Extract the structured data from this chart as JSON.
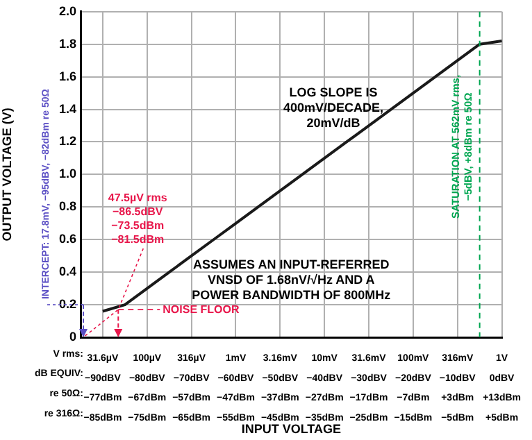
{
  "chart_data": {
    "type": "line",
    "xlabel": "INPUT VOLTAGE",
    "ylabel": "OUTPUT VOLTAGE (V)",
    "categories": [
      null,
      "31.6µV\n−90dBV\n−77dBm\n−85dBm",
      null,
      "100µV\n−80dBV\n−67dBm\n−75dBm",
      null,
      "316µV\n−70dBV\n−57dBm\n−65dBm",
      null,
      "1mV\n−60dBV\n−47dBm\n−55dBm",
      null,
      "3.16mV\n−50dBV\n−37dBm\n−45dBm",
      null,
      "10mV\n−40dBV\n−27dBm\n−35dBm",
      null,
      "31.6mV\n−30dBV\n−17dBm\n−25dBm",
      null,
      "100mV\n−20dBV\n−7dBm\n−15dBm",
      null,
      "316mV\n−10dBV\n+3dBm\n−5dBm",
      null,
      "1V\n0dBV\n+13dBm\n+5dBm"
    ],
    "series": [
      {
        "color": "#1a1a1a",
        "values": [
          null,
          0.16,
          0.2,
          0.3,
          0.4,
          0.5,
          0.6,
          0.7,
          0.8,
          0.9,
          1.0,
          1.1,
          1.2,
          1.3,
          1.4,
          1.5,
          1.6,
          1.7,
          1.8,
          1.82
        ]
      }
    ],
    "ylim": [
      0,
      2
    ],
    "yticks": [
      0,
      0.2,
      0.4,
      0.6,
      0.8,
      {
        "value": 1,
        "label": "1.0"
      },
      1.2,
      1.4,
      1.6,
      1.8,
      {
        "value": 2,
        "label": "2.0"
      }
    ],
    "ref_lines": [
      {
        "axis": "y",
        "value": 0.17,
        "label": "NOISE FLOOR",
        "color": "#e8174b",
        "line_style": "dashed"
      }
    ],
    "grid": true,
    "marker": "none",
    "line_style": "solid",
    "annotations": [
      "47.5µV rms\n−86.5dBV\n−73.5dBm\n−81.5dBm",
      "INTERCEPT: 17.8mV, −95dBV, −82dBm re 50Ω",
      "LOG SLOPE IS\n400mV/DECADE,\n20mV/dB",
      "ASSUMES AN INPUT-REFERRED\nVNSD OF 1.68nV/√Hz AND A\nPOWER BANDWIDTH OF 800MHz",
      "SATURATION AT 562mV rms,\n−5dBV, +8dBm re 50Ω",
      "V rms:",
      "dB EQUIV:",
      "re 50Ω:",
      "re 316Ω:"
    ]
  }
}
